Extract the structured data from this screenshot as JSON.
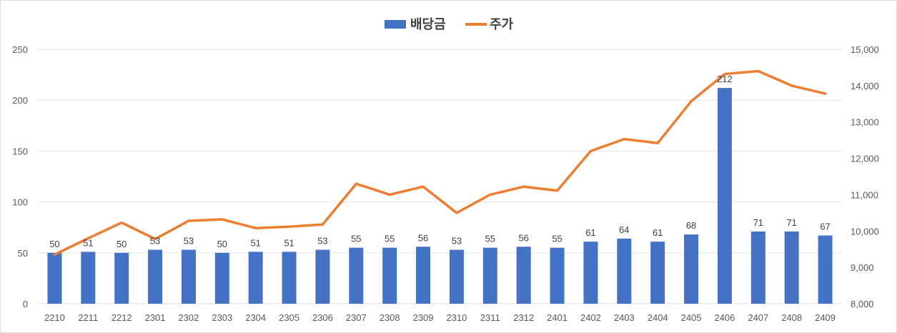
{
  "chart_data": {
    "type": "bar+line",
    "title": "",
    "categories": [
      "2210",
      "2211",
      "2212",
      "2301",
      "2302",
      "2303",
      "2304",
      "2305",
      "2306",
      "2307",
      "2308",
      "2309",
      "2310",
      "2311",
      "2312",
      "2401",
      "2402",
      "2403",
      "2404",
      "2405",
      "2406",
      "2407",
      "2408",
      "2409"
    ],
    "series": [
      {
        "name": "배당금",
        "type": "bar",
        "axis": "left",
        "color": "#4472C4",
        "values": [
          50,
          51,
          50,
          53,
          53,
          50,
          51,
          51,
          53,
          55,
          55,
          56,
          53,
          55,
          56,
          55,
          61,
          64,
          61,
          68,
          212,
          71,
          71,
          67
        ],
        "labels": [
          "50",
          "51",
          "50",
          "53",
          "53",
          "50",
          "51",
          "51",
          "53",
          "55",
          "55",
          "56",
          "53",
          "55",
          "56",
          "55",
          "61",
          "64",
          "61",
          "68",
          "212",
          "71",
          "71",
          "67"
        ]
      },
      {
        "name": "주가",
        "type": "line",
        "axis": "right",
        "color": "#ED7D31",
        "values": [
          9350,
          9800,
          10230,
          9780,
          10280,
          10320,
          10080,
          10120,
          10180,
          11300,
          11000,
          11220,
          10500,
          11000,
          11220,
          11110,
          12200,
          12530,
          12420,
          13570,
          14320,
          14400,
          14000,
          13780
        ]
      }
    ],
    "y_left": {
      "min": 0,
      "max": 250,
      "ticks": [
        "0",
        "50",
        "100",
        "150",
        "200",
        "250"
      ],
      "tick_values": [
        0,
        50,
        100,
        150,
        200,
        250
      ]
    },
    "y_right": {
      "min": 8000,
      "max": 15000,
      "ticks": [
        "8,000",
        "9,000",
        "10,000",
        "11,000",
        "12,000",
        "13,000",
        "14,000",
        "15,000"
      ],
      "tick_values": [
        8000,
        9000,
        10000,
        11000,
        12000,
        13000,
        14000,
        15000
      ]
    },
    "legend": {
      "position": "top",
      "items": [
        "배당금",
        "주가"
      ]
    },
    "grid": true
  }
}
